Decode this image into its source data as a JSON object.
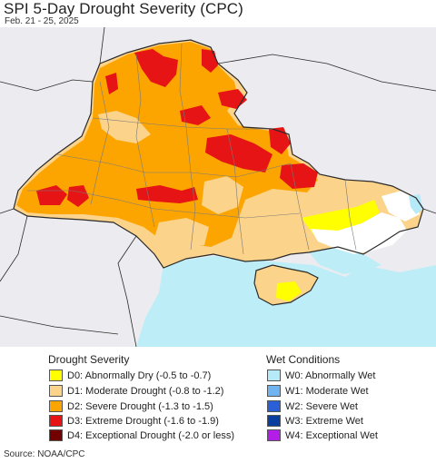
{
  "header": {
    "title": "SPI 5-Day Drought Severity (CPC)",
    "date_range": "Feb. 21 - 25, 2025"
  },
  "map": {
    "colors": {
      "background": "#ececf0",
      "sea": "#bdeef7",
      "abnormally_dry": "#ffff00",
      "moderate_drought": "#fcd38a",
      "severe_drought": "#fca500",
      "extreme_drought": "#e61414",
      "exceptional_drought": "#730000",
      "no_data": "#ffffff",
      "abnormally_wet": "#b6eaf8",
      "moderate_wet": "#6fb3f0",
      "border": "#2a2a2a",
      "oblast_line": "#7a7a7a"
    }
  },
  "legend": {
    "drought": {
      "title": "Drought Severity",
      "items": [
        {
          "label": "D0: Abnormally Dry (-0.5 to -0.7)",
          "color": "#ffff00"
        },
        {
          "label": "D1: Moderate Drought (-0.8 to -1.2)",
          "color": "#fcd38a"
        },
        {
          "label": "D2: Severe Drought (-1.3 to -1.5)",
          "color": "#fca500"
        },
        {
          "label": "D3: Extreme Drought (-1.6 to -1.9)",
          "color": "#e61414"
        },
        {
          "label": "D4: Exceptional Drought (-2.0 or less)",
          "color": "#730000"
        }
      ]
    },
    "wet": {
      "title": "Wet Conditions",
      "items": [
        {
          "label": "W0: Abnormally Wet",
          "color": "#b6eaf8"
        },
        {
          "label": "W1: Moderate Wet",
          "color": "#6fb3f0"
        },
        {
          "label": "W2: Severe Wet",
          "color": "#2a5fd8"
        },
        {
          "label": "W3: Extreme Wet",
          "color": "#0a3fa0"
        },
        {
          "label": "W4: Exceptional Wet",
          "color": "#b21ee8"
        }
      ]
    }
  },
  "footer": {
    "source": "Source: NOAA/CPC"
  }
}
